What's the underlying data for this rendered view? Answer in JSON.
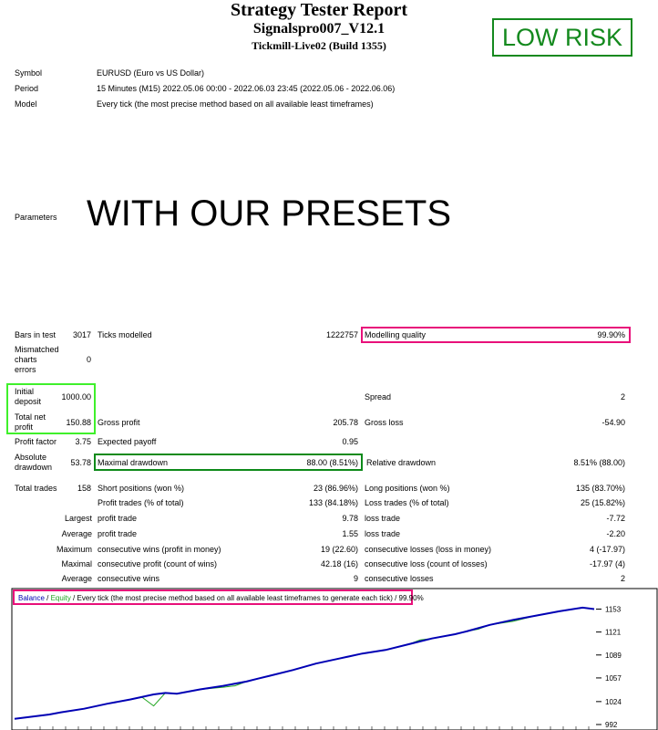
{
  "header": {
    "title": "Strategy Tester Report",
    "ea_name": "Signalspro007_V12.1",
    "server": "Tickmill-Live02 (Build 1355)",
    "badge": "LOW RISK"
  },
  "info": {
    "symbol_label": "Symbol",
    "symbol_value": "EURUSD (Euro vs US Dollar)",
    "period_label": "Period",
    "period_value": "15 Minutes (M15) 2022.05.06 00:00 - 2022.06.03 23:45 (2022.05.06 - 2022.06.06)",
    "model_label": "Model",
    "model_value": "Every tick (the most precise method based on all available least timeframes)",
    "parameters_label": "Parameters",
    "parameters_note": "WITH OUR PRESETS"
  },
  "stats": {
    "bars_label": "Bars in test",
    "bars_value": "3017",
    "ticks_label": "Ticks modelled",
    "ticks_value": "1222757",
    "quality_label": "Modelling quality",
    "quality_value": "99.90%",
    "mismatch_label_1": "Mismatched",
    "mismatch_label_2": "charts",
    "mismatch_label_3": "errors",
    "mismatch_value": "0",
    "deposit_label_1": "Initial",
    "deposit_label_2": "deposit",
    "deposit_value": "1000.00",
    "spread_label": "Spread",
    "spread_value": "2",
    "netprofit_label_1": "Total net",
    "netprofit_label_2": "profit",
    "netprofit_value": "150.88",
    "gross_profit_label": "Gross profit",
    "gross_profit_value": "205.78",
    "gross_loss_label": "Gross loss",
    "gross_loss_value": "-54.90",
    "pf_label": "Profit factor",
    "pf_value": "3.75",
    "payoff_label": "Expected payoff",
    "payoff_value": "0.95",
    "absdd_label_1": "Absolute",
    "absdd_label_2": "drawdown",
    "absdd_value": "53.78",
    "maxdd_label": "Maximal drawdown",
    "maxdd_value": "88.00 (8.51%)",
    "reldd_label": "Relative drawdown",
    "reldd_value": "8.51% (88.00)",
    "trades_label": "Total trades",
    "trades_value": "158",
    "short_label": "Short positions (won %)",
    "short_value": "23 (86.96%)",
    "long_label": "Long positions (won %)",
    "long_value": "135 (83.70%)",
    "ptrades_label": "Profit trades (% of total)",
    "ptrades_value": "133 (84.18%)",
    "ltrades_label": "Loss trades (% of total)",
    "ltrades_value": "25 (15.82%)",
    "largest_label": "Largest",
    "largest_profit_label": "profit trade",
    "largest_profit_value": "9.78",
    "largest_loss_label": "loss trade",
    "largest_loss_value": "-7.72",
    "average_label": "Average",
    "average_profit_label": "profit trade",
    "average_profit_value": "1.55",
    "average_loss_label": "loss trade",
    "average_loss_value": "-2.20",
    "maximum_label": "Maximum",
    "max_wins_label": "consecutive wins (profit in money)",
    "max_wins_value": "19 (22.60)",
    "max_losses_label": "consecutive losses (loss in money)",
    "max_losses_value": "4 (-17.97)",
    "maximal_label": "Maximal",
    "maximal_profit_label": "consecutive profit (count of wins)",
    "maximal_profit_value": "42.18 (16)",
    "maximal_loss_label": "consecutive loss (count of losses)",
    "maximal_loss_value": "-17.97 (4)",
    "avg_label": "Average",
    "avg_wins_label": "consecutive wins",
    "avg_wins_value": "9",
    "avg_losses_label": "consecutive losses",
    "avg_losses_value": "2"
  },
  "chart_legend": {
    "balance": "Balance",
    "sep": " / ",
    "equity": "Equity",
    "rest": " / Every tick (the most precise method based on all available least timeframes to generate each tick) / 99.90%"
  },
  "colors": {
    "balance": "#0000b4",
    "equity": "#1fa51f",
    "pink": "#e8107a",
    "green": "#14891e",
    "lime": "#3ff02b"
  },
  "chart_data": {
    "type": "line",
    "y_ticks": [
      1153,
      1121,
      1089,
      1057,
      1024,
      992
    ],
    "ylim": [
      992,
      1160
    ],
    "series": [
      {
        "name": "Balance",
        "x": [
          0,
          6,
          8,
          12,
          16,
          20,
          24,
          26,
          28,
          32,
          36,
          40,
          42,
          44,
          48,
          52,
          56,
          60,
          64,
          68,
          72,
          76,
          78,
          82,
          86,
          90,
          94,
          98,
          100
        ],
        "values": [
          1000,
          1006,
          1009,
          1014,
          1021,
          1027,
          1034,
          1036,
          1035,
          1041,
          1046,
          1052,
          1056,
          1060,
          1068,
          1077,
          1084,
          1091,
          1096,
          1104,
          1112,
          1118,
          1122,
          1131,
          1138,
          1144,
          1150,
          1155,
          1153
        ]
      },
      {
        "name": "Equity",
        "x": [
          0,
          6,
          8,
          12,
          16,
          20,
          22,
          24,
          26,
          28,
          32,
          36,
          38,
          40,
          42,
          44,
          48,
          52,
          56,
          60,
          64,
          68,
          70,
          72,
          76,
          78,
          80,
          82,
          86,
          90,
          94,
          98,
          100
        ],
        "values": [
          1000,
          1006,
          1009,
          1014,
          1021,
          1027,
          1030,
          1018,
          1036,
          1035,
          1041,
          1044,
          1046,
          1052,
          1056,
          1060,
          1068,
          1077,
          1084,
          1091,
          1096,
          1104,
          1110,
          1112,
          1118,
          1122,
          1125,
          1131,
          1136,
          1144,
          1150,
          1155,
          1153
        ]
      }
    ]
  }
}
